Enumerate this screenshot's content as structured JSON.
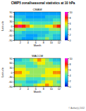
{
  "title": "CMIP5 zonal/seasonal statistics at 10 hPa",
  "footnote": "© Author(s) 2012",
  "chart_data": [
    {
      "type": "heatmap",
      "title": "CMAM",
      "x_label": "Month",
      "y_label": "Latitude",
      "x": [
        1,
        2,
        3,
        4,
        5,
        6,
        7,
        8,
        9,
        10,
        11,
        12
      ],
      "y": [
        -80,
        -60,
        -40,
        -20,
        0,
        20,
        40,
        60,
        80
      ],
      "xlim": [
        0.5,
        12.5
      ],
      "xticks": [
        2,
        4,
        6,
        8,
        10,
        12
      ],
      "ylim": [
        -90,
        90
      ],
      "yticks": [
        -90,
        -60,
        -30,
        0,
        30,
        60,
        90
      ],
      "cells": [
        [
          3,
          3,
          2,
          2,
          2,
          3,
          4,
          4,
          5,
          4,
          3,
          3
        ],
        [
          3,
          3,
          3,
          2,
          2,
          2,
          3,
          3,
          4,
          4,
          3,
          3
        ],
        [
          4,
          4,
          3,
          3,
          3,
          3,
          3,
          3,
          3,
          4,
          4,
          4
        ],
        [
          5,
          5,
          5,
          4,
          4,
          4,
          4,
          4,
          4,
          5,
          5,
          5
        ],
        [
          8,
          9,
          8,
          7,
          6,
          5,
          5,
          5,
          6,
          6,
          7,
          8
        ],
        [
          5,
          6,
          5,
          5,
          4,
          4,
          4,
          4,
          4,
          4,
          5,
          5
        ],
        [
          4,
          4,
          3,
          3,
          3,
          3,
          3,
          3,
          3,
          3,
          4,
          4
        ],
        [
          3,
          3,
          3,
          2,
          2,
          2,
          2,
          2,
          3,
          3,
          3,
          3
        ],
        [
          2,
          2,
          2,
          2,
          2,
          2,
          2,
          2,
          2,
          2,
          2,
          2
        ]
      ],
      "colorbar_range": [
        0,
        10
      ],
      "colorbar_ticks": [
        0,
        2,
        4,
        6,
        8,
        10
      ]
    },
    {
      "type": "heatmap",
      "title": "WACCM",
      "x_label": "Month",
      "y_label": "Latitude",
      "x": [
        1,
        2,
        3,
        4,
        5,
        6,
        7,
        8,
        9,
        10,
        11,
        12
      ],
      "y": [
        -80,
        -60,
        -40,
        -20,
        0,
        20,
        40,
        60,
        80
      ],
      "xlim": [
        0.5,
        12.5
      ],
      "xticks": [
        2,
        4,
        6,
        8,
        10,
        12
      ],
      "ylim": [
        -90,
        90
      ],
      "yticks": [
        -90,
        -60,
        -30,
        0,
        30,
        60,
        90
      ],
      "cells": [
        [
          5,
          5,
          4,
          4,
          4,
          5,
          6,
          6,
          7,
          6,
          5,
          5
        ],
        [
          4,
          4,
          4,
          3,
          3,
          3,
          4,
          5,
          6,
          6,
          5,
          4
        ],
        [
          5,
          5,
          5,
          4,
          4,
          4,
          4,
          4,
          5,
          5,
          5,
          5
        ],
        [
          6,
          6,
          6,
          5,
          5,
          5,
          5,
          6,
          6,
          6,
          6,
          6
        ],
        [
          7,
          7,
          6,
          6,
          5,
          5,
          5,
          5,
          6,
          6,
          7,
          7
        ],
        [
          6,
          6,
          6,
          5,
          5,
          5,
          5,
          5,
          6,
          6,
          6,
          6
        ],
        [
          5,
          5,
          5,
          4,
          4,
          4,
          5,
          5,
          5,
          5,
          5,
          5
        ],
        [
          4,
          4,
          4,
          4,
          4,
          5,
          6,
          6,
          5,
          5,
          4,
          4
        ],
        [
          3,
          3,
          4,
          4,
          5,
          6,
          7,
          6,
          5,
          4,
          3,
          3
        ]
      ],
      "colorbar_range": [
        0,
        10
      ],
      "colorbar_ticks": [
        0,
        2,
        4,
        6,
        8,
        10
      ]
    }
  ]
}
